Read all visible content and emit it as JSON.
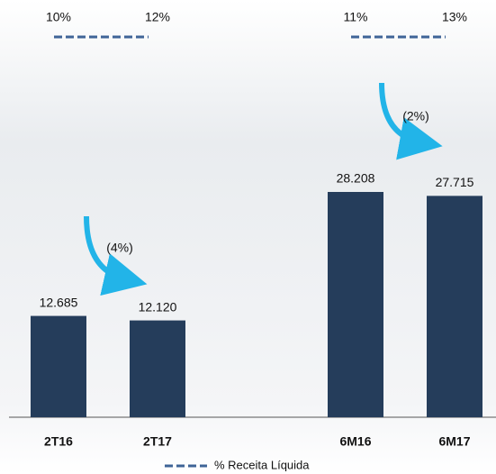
{
  "chart_data": {
    "type": "bar",
    "categories": [
      "2T16",
      "2T17",
      null,
      "6M16",
      "6M17"
    ],
    "values": [
      12685,
      12120,
      null,
      28208,
      27715
    ],
    "value_labels": [
      "12.685",
      "12.120",
      null,
      "28.208",
      "27.715"
    ],
    "color": "#253d5b",
    "line_series": {
      "name": "% Receita Líquida",
      "color": "#3f6497",
      "values": [
        10,
        12,
        null,
        11,
        13
      ],
      "value_labels": [
        "10%",
        "12%",
        null,
        "11%",
        "13%"
      ]
    },
    "annotations": [
      "(4%)",
      "(2%)"
    ]
  }
}
